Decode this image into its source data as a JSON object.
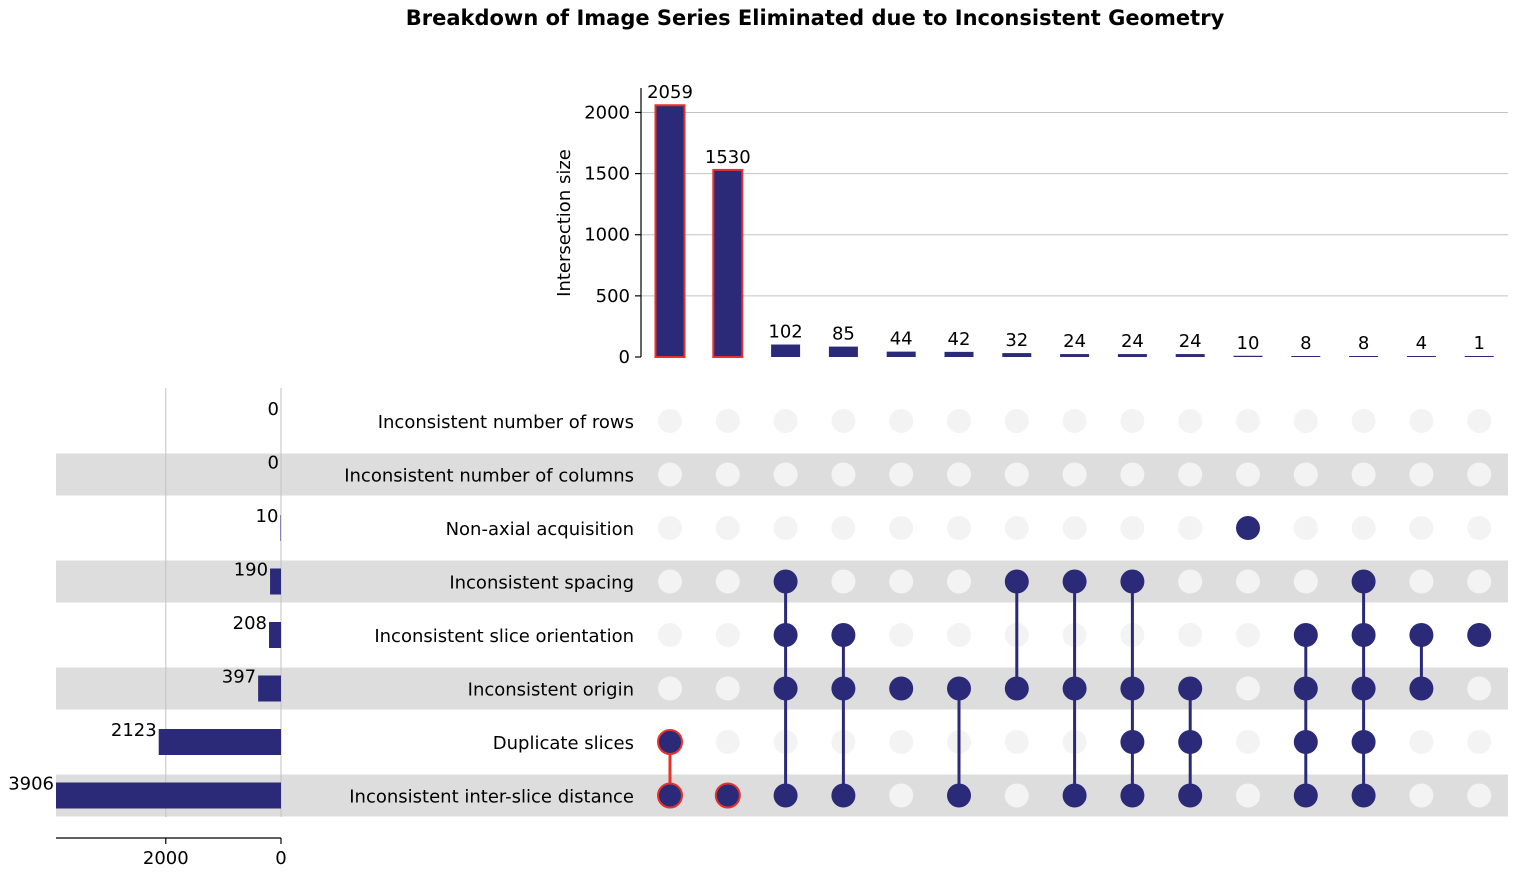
{
  "chart_data": {
    "type": "upset",
    "title": "Breakdown of Image Series Eliminated due to Inconsistent Geometry",
    "intersection_axis": {
      "label": "Intersection size",
      "ticks": [
        0,
        500,
        1000,
        1500,
        2000
      ],
      "ylim": [
        0,
        2200
      ],
      "grid": true
    },
    "set_size_axis": {
      "ticks": [
        2000,
        0
      ],
      "xlim": [
        0,
        3906
      ],
      "direction": "reversed"
    },
    "sets": [
      {
        "name": "Inconsistent number of rows",
        "size": 0
      },
      {
        "name": "Inconsistent number of columns",
        "size": 0
      },
      {
        "name": "Non-axial acquisition",
        "size": 10
      },
      {
        "name": "Inconsistent spacing",
        "size": 190
      },
      {
        "name": "Inconsistent slice orientation",
        "size": 208
      },
      {
        "name": "Inconsistent origin",
        "size": 397
      },
      {
        "name": "Duplicate slices",
        "size": 2123
      },
      {
        "name": "Inconsistent inter-slice distance",
        "size": 3906
      }
    ],
    "intersections": [
      {
        "value": 2059,
        "members": [
          6,
          7
        ],
        "highlight": true
      },
      {
        "value": 1530,
        "members": [
          7
        ],
        "highlight": true
      },
      {
        "value": 102,
        "members": [
          3,
          4,
          5,
          7
        ],
        "highlight": false
      },
      {
        "value": 85,
        "members": [
          4,
          5,
          7
        ],
        "highlight": false
      },
      {
        "value": 44,
        "members": [
          5
        ],
        "highlight": false
      },
      {
        "value": 42,
        "members": [
          5,
          7
        ],
        "highlight": false
      },
      {
        "value": 32,
        "members": [
          3,
          5
        ],
        "highlight": false
      },
      {
        "value": 24,
        "members": [
          3,
          5,
          7
        ],
        "highlight": false
      },
      {
        "value": 24,
        "members": [
          3,
          5,
          6,
          7
        ],
        "highlight": false
      },
      {
        "value": 24,
        "members": [
          5,
          6,
          7
        ],
        "highlight": false
      },
      {
        "value": 10,
        "members": [
          2
        ],
        "highlight": false
      },
      {
        "value": 8,
        "members": [
          4,
          5,
          6,
          7
        ],
        "highlight": false
      },
      {
        "value": 8,
        "members": [
          3,
          4,
          5,
          6,
          7
        ],
        "highlight": false
      },
      {
        "value": 4,
        "members": [
          4,
          5
        ],
        "highlight": false
      },
      {
        "value": 1,
        "members": [
          4
        ],
        "highlight": false
      }
    ],
    "colors": {
      "bar": "#2a2a78",
      "highlight_edge": "#e8312a",
      "inactive_dot": "#f3f3f3",
      "stripe": "#dedddd",
      "grid": "#c2c2c2"
    }
  }
}
